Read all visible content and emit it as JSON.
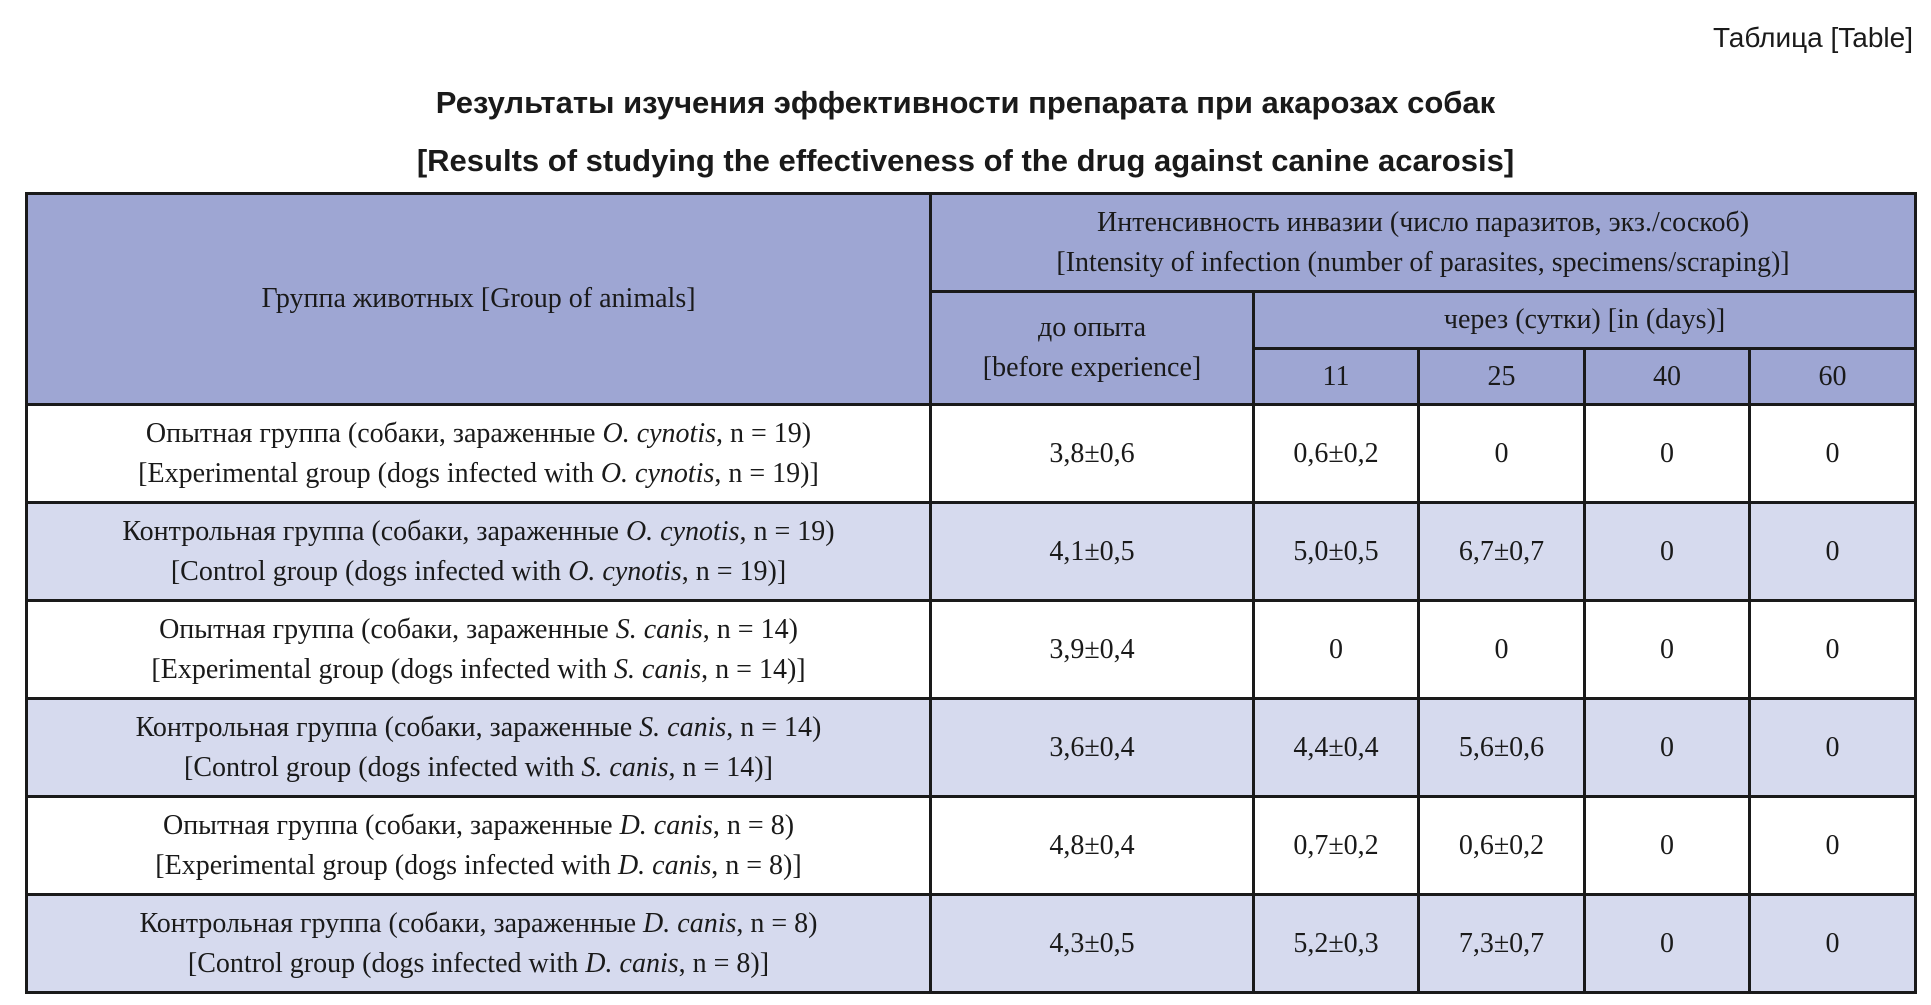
{
  "table_label": "Таблица [Table]",
  "title": {
    "ru": "Результаты изучения эффективности препарата при акарозах собак",
    "en": "[Results of studying the effectiveness of the drug against canine acarosis]"
  },
  "header": {
    "group": "Группа животных [Group of animals]",
    "intensity": {
      "ru": "Интенсивность инвазии (число паразитов, экз./соскоб)",
      "en": "[Intensity of infection (number of parasites, specimens/scraping)]"
    },
    "before": {
      "ru": "до опыта",
      "en": "[before experience]"
    },
    "after": "через (сутки) [in (days)]",
    "days": [
      "11",
      "25",
      "40",
      "60"
    ]
  },
  "rows": [
    {
      "ru_prefix": "Опытная группа (собаки, зараженные ",
      "species": "O. cynotis",
      "ru_suffix": ", n = 19)",
      "en_prefix": "[Experimental group (dogs infected with ",
      "en_suffix": ", n = 19)]",
      "before": "3,8±0,6",
      "d11": "0,6±0,2",
      "d25": "0",
      "d40": "0",
      "d60": "0"
    },
    {
      "ru_prefix": "Контрольная группа (собаки, зараженные ",
      "species": "O. cynotis",
      "ru_suffix": ", n = 19)",
      "en_prefix": "[Control group (dogs infected with ",
      "en_suffix": ", n = 19)]",
      "before": "4,1±0,5",
      "d11": "5,0±0,5",
      "d25": "6,7±0,7",
      "d40": "0",
      "d60": "0"
    },
    {
      "ru_prefix": "Опытная группа (собаки, зараженные ",
      "species": "S. canis",
      "ru_suffix": ", n = 14)",
      "en_prefix": "[Experimental group (dogs infected with ",
      "en_suffix": ", n = 14)]",
      "before": "3,9±0,4",
      "d11": "0",
      "d25": "0",
      "d40": "0",
      "d60": "0"
    },
    {
      "ru_prefix": "Контрольная группа (собаки, зараженные ",
      "species": "S. canis",
      "ru_suffix": ", n = 14)",
      "en_prefix": "[Control group (dogs infected with ",
      "en_suffix": ", n = 14)]",
      "before": "3,6±0,4",
      "d11": "4,4±0,4",
      "d25": "5,6±0,6",
      "d40": "0",
      "d60": "0"
    },
    {
      "ru_prefix": "Опытная группа (собаки, зараженные ",
      "species": "D. canis",
      "ru_suffix": ", n = 8)",
      "en_prefix": "[Experimental group (dogs infected with ",
      "en_suffix": ", n = 8)]",
      "before": "4,8±0,4",
      "d11": "0,7±0,2",
      "d25": "0,6±0,2",
      "d40": "0",
      "d60": "0"
    },
    {
      "ru_prefix": "Контрольная группа (собаки, зараженные ",
      "species": "D. canis",
      "ru_suffix": ", n = 8)",
      "en_prefix": "[Control group (dogs infected with ",
      "en_suffix": ", n = 8)]",
      "before": "4,3±0,5",
      "d11": "5,2±0,3",
      "d25": "7,3±0,7",
      "d40": "0",
      "d60": "0"
    }
  ],
  "colors": {
    "header_fill": "#9ea6d3",
    "tint_row_fill": "#d6daee",
    "border": "#1a1a1a"
  }
}
